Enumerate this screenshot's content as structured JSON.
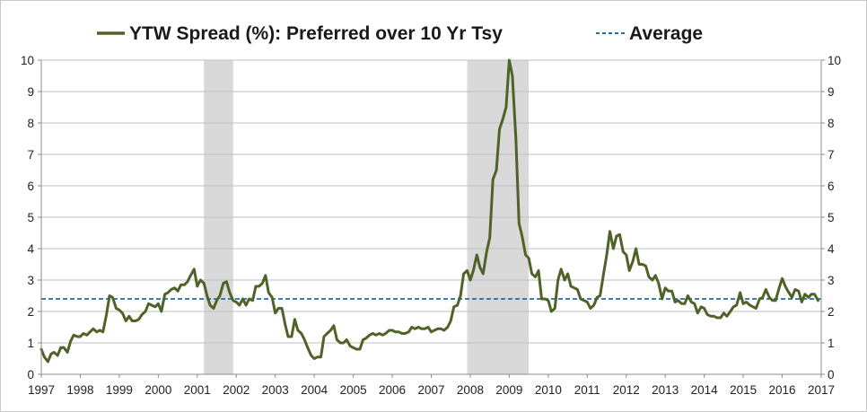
{
  "chart_data": {
    "type": "line",
    "title": "",
    "xlabel": "",
    "ylabel": "",
    "ylim": [
      0,
      10
    ],
    "xlim": [
      1997,
      2017
    ],
    "y_ticks": [
      "0",
      "1",
      "2",
      "3",
      "4",
      "5",
      "6",
      "7",
      "8",
      "9",
      "10"
    ],
    "x_ticks": [
      "1997",
      "1998",
      "1999",
      "2000",
      "2001",
      "2002",
      "2003",
      "2004",
      "2005",
      "2006",
      "2007",
      "2008",
      "2009",
      "2010",
      "2011",
      "2012",
      "2013",
      "2014",
      "2015",
      "2016",
      "2017"
    ],
    "legend": {
      "placement": "top",
      "entries": [
        {
          "label": "YTW Spread (%): Preferred over 10 Yr Tsy",
          "style": "solid"
        },
        {
          "label": "Average",
          "style": "dashed"
        }
      ]
    },
    "grid": true,
    "average": 2.4,
    "recession_bands": [
      [
        2001.17,
        2001.92
      ],
      [
        2007.92,
        2009.5
      ]
    ],
    "colors": {
      "series": "#4f6228",
      "average": "#1f6fa8",
      "recession": "#d9d9d9"
    },
    "series": [
      {
        "name": "YTW Spread (%): Preferred over 10 Yr Tsy",
        "points": [
          [
            1997.0,
            0.8
          ],
          [
            1997.08,
            0.55
          ],
          [
            1997.17,
            0.4
          ],
          [
            1997.25,
            0.65
          ],
          [
            1997.33,
            0.7
          ],
          [
            1997.42,
            0.6
          ],
          [
            1997.5,
            0.85
          ],
          [
            1997.58,
            0.85
          ],
          [
            1997.67,
            0.7
          ],
          [
            1997.75,
            1.05
          ],
          [
            1997.83,
            1.25
          ],
          [
            1997.92,
            1.2
          ],
          [
            1998.0,
            1.2
          ],
          [
            1998.08,
            1.3
          ],
          [
            1998.17,
            1.25
          ],
          [
            1998.25,
            1.35
          ],
          [
            1998.33,
            1.45
          ],
          [
            1998.42,
            1.35
          ],
          [
            1998.5,
            1.4
          ],
          [
            1998.58,
            1.35
          ],
          [
            1998.67,
            1.9
          ],
          [
            1998.75,
            2.5
          ],
          [
            1998.83,
            2.45
          ],
          [
            1998.92,
            2.1
          ],
          [
            1999.0,
            2.05
          ],
          [
            1999.08,
            1.95
          ],
          [
            1999.17,
            1.7
          ],
          [
            1999.25,
            1.85
          ],
          [
            1999.33,
            1.7
          ],
          [
            1999.42,
            1.7
          ],
          [
            1999.5,
            1.75
          ],
          [
            1999.58,
            1.9
          ],
          [
            1999.67,
            2.0
          ],
          [
            1999.75,
            2.25
          ],
          [
            1999.83,
            2.2
          ],
          [
            1999.92,
            2.15
          ],
          [
            2000.0,
            2.25
          ],
          [
            2000.08,
            2.0
          ],
          [
            2000.17,
            2.55
          ],
          [
            2000.25,
            2.6
          ],
          [
            2000.33,
            2.7
          ],
          [
            2000.42,
            2.75
          ],
          [
            2000.5,
            2.65
          ],
          [
            2000.58,
            2.85
          ],
          [
            2000.67,
            2.85
          ],
          [
            2000.75,
            2.95
          ],
          [
            2000.83,
            3.15
          ],
          [
            2000.92,
            3.35
          ],
          [
            2001.0,
            2.8
          ],
          [
            2001.08,
            3.0
          ],
          [
            2001.17,
            2.9
          ],
          [
            2001.25,
            2.5
          ],
          [
            2001.33,
            2.2
          ],
          [
            2001.42,
            2.1
          ],
          [
            2001.5,
            2.35
          ],
          [
            2001.58,
            2.5
          ],
          [
            2001.67,
            2.9
          ],
          [
            2001.75,
            2.95
          ],
          [
            2001.83,
            2.6
          ],
          [
            2001.92,
            2.35
          ],
          [
            2002.0,
            2.3
          ],
          [
            2002.08,
            2.2
          ],
          [
            2002.17,
            2.4
          ],
          [
            2002.25,
            2.2
          ],
          [
            2002.33,
            2.4
          ],
          [
            2002.42,
            2.35
          ],
          [
            2002.5,
            2.8
          ],
          [
            2002.58,
            2.8
          ],
          [
            2002.67,
            2.9
          ],
          [
            2002.75,
            3.15
          ],
          [
            2002.83,
            2.6
          ],
          [
            2002.92,
            2.45
          ],
          [
            2003.0,
            1.95
          ],
          [
            2003.08,
            2.1
          ],
          [
            2003.17,
            2.1
          ],
          [
            2003.25,
            1.6
          ],
          [
            2003.33,
            1.2
          ],
          [
            2003.42,
            1.2
          ],
          [
            2003.5,
            1.75
          ],
          [
            2003.58,
            1.4
          ],
          [
            2003.67,
            1.3
          ],
          [
            2003.75,
            1.1
          ],
          [
            2003.83,
            0.85
          ],
          [
            2003.92,
            0.6
          ],
          [
            2004.0,
            0.5
          ],
          [
            2004.08,
            0.55
          ],
          [
            2004.17,
            0.55
          ],
          [
            2004.25,
            1.2
          ],
          [
            2004.33,
            1.3
          ],
          [
            2004.42,
            1.4
          ],
          [
            2004.5,
            1.55
          ],
          [
            2004.58,
            1.1
          ],
          [
            2004.67,
            1.0
          ],
          [
            2004.75,
            1.0
          ],
          [
            2004.83,
            1.1
          ],
          [
            2004.92,
            0.9
          ],
          [
            2005.0,
            0.85
          ],
          [
            2005.08,
            0.8
          ],
          [
            2005.17,
            0.8
          ],
          [
            2005.25,
            1.1
          ],
          [
            2005.33,
            1.15
          ],
          [
            2005.42,
            1.25
          ],
          [
            2005.5,
            1.3
          ],
          [
            2005.58,
            1.25
          ],
          [
            2005.67,
            1.3
          ],
          [
            2005.75,
            1.25
          ],
          [
            2005.83,
            1.3
          ],
          [
            2005.92,
            1.4
          ],
          [
            2006.0,
            1.4
          ],
          [
            2006.08,
            1.35
          ],
          [
            2006.17,
            1.35
          ],
          [
            2006.25,
            1.3
          ],
          [
            2006.33,
            1.3
          ],
          [
            2006.42,
            1.35
          ],
          [
            2006.5,
            1.5
          ],
          [
            2006.58,
            1.45
          ],
          [
            2006.67,
            1.5
          ],
          [
            2006.75,
            1.45
          ],
          [
            2006.83,
            1.45
          ],
          [
            2006.92,
            1.5
          ],
          [
            2007.0,
            1.35
          ],
          [
            2007.08,
            1.4
          ],
          [
            2007.17,
            1.45
          ],
          [
            2007.25,
            1.45
          ],
          [
            2007.33,
            1.4
          ],
          [
            2007.42,
            1.5
          ],
          [
            2007.5,
            1.7
          ],
          [
            2007.58,
            2.15
          ],
          [
            2007.67,
            2.2
          ],
          [
            2007.75,
            2.5
          ],
          [
            2007.83,
            3.2
          ],
          [
            2007.92,
            3.3
          ],
          [
            2008.0,
            3.0
          ],
          [
            2008.08,
            3.3
          ],
          [
            2008.17,
            3.8
          ],
          [
            2008.25,
            3.4
          ],
          [
            2008.33,
            3.2
          ],
          [
            2008.42,
            3.9
          ],
          [
            2008.5,
            4.35
          ],
          [
            2008.58,
            6.2
          ],
          [
            2008.67,
            6.5
          ],
          [
            2008.75,
            7.8
          ],
          [
            2008.83,
            8.1
          ],
          [
            2008.92,
            8.5
          ],
          [
            2009.0,
            10.0
          ],
          [
            2009.08,
            9.5
          ],
          [
            2009.17,
            7.5
          ],
          [
            2009.25,
            4.8
          ],
          [
            2009.33,
            4.4
          ],
          [
            2009.42,
            3.8
          ],
          [
            2009.5,
            3.7
          ],
          [
            2009.58,
            3.2
          ],
          [
            2009.67,
            3.1
          ],
          [
            2009.75,
            3.3
          ],
          [
            2009.83,
            2.4
          ],
          [
            2009.92,
            2.4
          ],
          [
            2010.0,
            2.35
          ],
          [
            2010.08,
            2.0
          ],
          [
            2010.17,
            2.1
          ],
          [
            2010.25,
            3.0
          ],
          [
            2010.33,
            3.35
          ],
          [
            2010.42,
            3.0
          ],
          [
            2010.5,
            3.2
          ],
          [
            2010.58,
            2.8
          ],
          [
            2010.67,
            2.75
          ],
          [
            2010.75,
            2.7
          ],
          [
            2010.83,
            2.4
          ],
          [
            2010.92,
            2.35
          ],
          [
            2011.0,
            2.3
          ],
          [
            2011.08,
            2.1
          ],
          [
            2011.17,
            2.2
          ],
          [
            2011.25,
            2.45
          ],
          [
            2011.33,
            2.5
          ],
          [
            2011.42,
            3.2
          ],
          [
            2011.5,
            3.8
          ],
          [
            2011.58,
            4.55
          ],
          [
            2011.67,
            4.0
          ],
          [
            2011.75,
            4.4
          ],
          [
            2011.83,
            4.45
          ],
          [
            2011.92,
            3.9
          ],
          [
            2012.0,
            3.8
          ],
          [
            2012.08,
            3.3
          ],
          [
            2012.17,
            3.6
          ],
          [
            2012.25,
            4.0
          ],
          [
            2012.33,
            3.5
          ],
          [
            2012.42,
            3.5
          ],
          [
            2012.5,
            3.45
          ],
          [
            2012.58,
            3.1
          ],
          [
            2012.67,
            3.0
          ],
          [
            2012.75,
            3.15
          ],
          [
            2012.83,
            2.9
          ],
          [
            2012.92,
            2.4
          ],
          [
            2013.0,
            2.75
          ],
          [
            2013.08,
            2.65
          ],
          [
            2013.17,
            2.65
          ],
          [
            2013.25,
            2.3
          ],
          [
            2013.33,
            2.35
          ],
          [
            2013.42,
            2.25
          ],
          [
            2013.5,
            2.25
          ],
          [
            2013.58,
            2.5
          ],
          [
            2013.67,
            2.3
          ],
          [
            2013.75,
            2.25
          ],
          [
            2013.83,
            1.95
          ],
          [
            2013.92,
            2.15
          ],
          [
            2014.0,
            2.1
          ],
          [
            2014.08,
            1.9
          ],
          [
            2014.17,
            1.85
          ],
          [
            2014.25,
            1.85
          ],
          [
            2014.33,
            1.8
          ],
          [
            2014.42,
            1.8
          ],
          [
            2014.5,
            1.95
          ],
          [
            2014.58,
            1.85
          ],
          [
            2014.67,
            2.0
          ],
          [
            2014.75,
            2.15
          ],
          [
            2014.83,
            2.2
          ],
          [
            2014.92,
            2.6
          ],
          [
            2015.0,
            2.25
          ],
          [
            2015.08,
            2.3
          ],
          [
            2015.17,
            2.2
          ],
          [
            2015.25,
            2.15
          ],
          [
            2015.33,
            2.1
          ],
          [
            2015.42,
            2.4
          ],
          [
            2015.5,
            2.45
          ],
          [
            2015.58,
            2.7
          ],
          [
            2015.67,
            2.45
          ],
          [
            2015.75,
            2.35
          ],
          [
            2015.83,
            2.35
          ],
          [
            2015.92,
            2.75
          ],
          [
            2016.0,
            3.05
          ],
          [
            2016.08,
            2.8
          ],
          [
            2016.17,
            2.6
          ],
          [
            2016.25,
            2.45
          ],
          [
            2016.33,
            2.7
          ],
          [
            2016.42,
            2.65
          ],
          [
            2016.5,
            2.3
          ],
          [
            2016.58,
            2.55
          ],
          [
            2016.67,
            2.45
          ],
          [
            2016.75,
            2.55
          ],
          [
            2016.83,
            2.55
          ],
          [
            2016.92,
            2.35
          ]
        ]
      }
    ]
  }
}
